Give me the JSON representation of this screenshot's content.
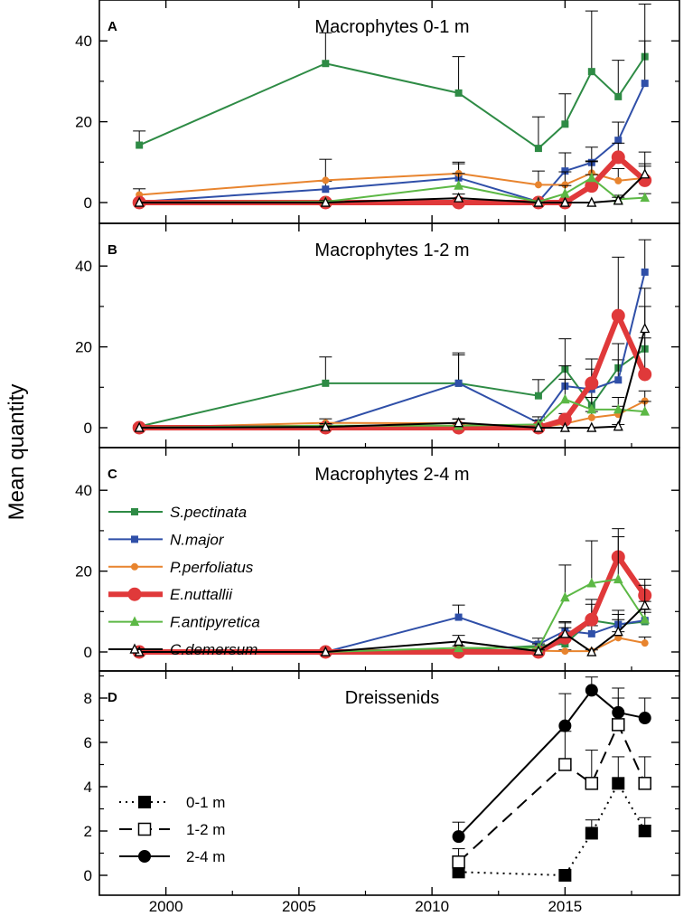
{
  "chart_data": [
    {
      "panel": "A",
      "type": "line",
      "title": "Macrophytes 0-1 m",
      "ylim": [
        0,
        50
      ],
      "yticks": [
        0,
        20,
        40
      ],
      "series": [
        {
          "name": "S.pectinata",
          "color": "#2e8b45",
          "marker": "square",
          "x": [
            1999,
            2006,
            2011,
            2014,
            2015,
            2016,
            2017,
            2018
          ],
          "values": [
            14.2,
            34.4,
            27.1,
            13.4,
            19.4,
            32.4,
            26.2,
            36.1
          ],
          "err": [
            3.5,
            7.6,
            9.0,
            7.8,
            7.5,
            15.0,
            9.0,
            13.0
          ]
        },
        {
          "name": "N.major",
          "color": "#2f4fa8",
          "marker": "square",
          "x": [
            1999,
            2006,
            2011,
            2014,
            2015,
            2016,
            2017,
            2018
          ],
          "values": [
            0.2,
            3.3,
            6.1,
            0.2,
            7.8,
            9.9,
            15.4,
            29.5
          ],
          "err": [
            0.3,
            2.0,
            3.5,
            0.3,
            4.5,
            3.8,
            4.5,
            10.5
          ]
        },
        {
          "name": "P.perfoliatus",
          "color": "#e8842e",
          "marker": "circle",
          "x": [
            1999,
            2006,
            2011,
            2014,
            2015,
            2016,
            2017,
            2018
          ],
          "values": [
            1.9,
            5.5,
            7.2,
            4.4,
            4.4,
            7.3,
            5.4,
            6.1
          ],
          "err": [
            1.5,
            5.2,
            2.8,
            3.4,
            3.2,
            3.0,
            3.0,
            3.5
          ]
        },
        {
          "name": "E.nuttallii",
          "color": "#e0393a",
          "marker": "circle",
          "x": [
            1999,
            2006,
            2011,
            2014,
            2015,
            2016,
            2017,
            2018
          ],
          "values": [
            0,
            0,
            0,
            0,
            0,
            4.1,
            11.2,
            5.5
          ],
          "err": [
            0,
            0,
            0,
            0,
            0,
            2.8,
            3.5,
            3.5
          ]
        },
        {
          "name": "F.antipyretica",
          "color": "#5cb845",
          "marker": "triangle",
          "x": [
            1999,
            2006,
            2011,
            2014,
            2015,
            2016,
            2017,
            2018
          ],
          "values": [
            0,
            0.2,
            4.2,
            0.2,
            2.2,
            6.1,
            0.8,
            1.2
          ],
          "err": [
            0,
            0.3,
            3.0,
            0.3,
            2.0,
            4.0,
            1.0,
            1.0
          ]
        },
        {
          "name": "C.demersum",
          "color": "#000000",
          "marker": "triangle-open",
          "x": [
            1999,
            2006,
            2011,
            2014,
            2015,
            2016,
            2017,
            2018
          ],
          "values": [
            0,
            0,
            1.1,
            0,
            0,
            0,
            0.5,
            7.0
          ],
          "err": [
            0,
            0,
            1.0,
            0,
            0,
            0,
            0.8,
            5.5
          ]
        }
      ]
    },
    {
      "panel": "B",
      "type": "line",
      "title": "Macrophytes 1-2 m",
      "ylim": [
        0,
        50
      ],
      "yticks": [
        0,
        20,
        40
      ],
      "series": [
        {
          "name": "S.pectinata",
          "color": "#2e8b45",
          "marker": "square",
          "x": [
            1999,
            2006,
            2011,
            2014,
            2015,
            2016,
            2017,
            2018
          ],
          "values": [
            0.3,
            11.0,
            11.0,
            7.9,
            14.5,
            5.5,
            14.8,
            19.5
          ],
          "err": [
            0.3,
            6.5,
            7.5,
            4.0,
            7.5,
            5.0,
            6.0,
            10.5
          ]
        },
        {
          "name": "N.major",
          "color": "#2f4fa8",
          "marker": "square",
          "x": [
            1999,
            2006,
            2011,
            2014,
            2015,
            2016,
            2017,
            2018
          ],
          "values": [
            0.1,
            0.5,
            11.0,
            1.2,
            10.3,
            9.5,
            11.8,
            38.5
          ],
          "err": [
            0.2,
            0.6,
            7.0,
            1.5,
            5.0,
            5.0,
            5.0,
            8.0
          ]
        },
        {
          "name": "P.perfoliatus",
          "color": "#e8842e",
          "marker": "circle",
          "x": [
            1999,
            2006,
            2011,
            2014,
            2015,
            2016,
            2017,
            2018
          ],
          "values": [
            0,
            1.2,
            1.1,
            0,
            1.0,
            2.5,
            3.3,
            6.6
          ],
          "err": [
            0,
            1.0,
            1.0,
            0,
            1.0,
            1.5,
            2.0,
            2.5
          ]
        },
        {
          "name": "E.nuttallii",
          "color": "#e0393a",
          "marker": "circle",
          "x": [
            1999,
            2006,
            2011,
            2014,
            2015,
            2016,
            2017,
            2018
          ],
          "values": [
            0,
            0,
            0,
            0,
            2.0,
            11.0,
            27.7,
            13.2
          ],
          "err": [
            0,
            0,
            0,
            0,
            1.5,
            6.0,
            14.5,
            9.0
          ]
        },
        {
          "name": "F.antipyretica",
          "color": "#5cb845",
          "marker": "triangle",
          "x": [
            1999,
            2006,
            2011,
            2014,
            2015,
            2016,
            2017,
            2018
          ],
          "values": [
            0,
            0.5,
            0.5,
            0.8,
            7.0,
            4.5,
            4.5,
            4.0
          ],
          "err": [
            0,
            0.5,
            0.5,
            1.0,
            5.0,
            3.0,
            3.0,
            2.5
          ]
        },
        {
          "name": "C.demersum",
          "color": "#000000",
          "marker": "triangle-open",
          "x": [
            1999,
            2006,
            2011,
            2014,
            2015,
            2016,
            2017,
            2018
          ],
          "values": [
            0,
            0.2,
            1.2,
            0,
            0,
            0,
            0.3,
            24.5
          ],
          "err": [
            0,
            0.2,
            1.0,
            0,
            0,
            0,
            0.5,
            10.0
          ]
        }
      ]
    },
    {
      "panel": "C",
      "type": "line",
      "title": "Macrophytes 2-4 m",
      "ylim": [
        0,
        50
      ],
      "yticks": [
        0,
        20,
        40
      ],
      "series": [
        {
          "name": "S.pectinata",
          "color": "#2e8b45",
          "marker": "square",
          "x": [
            1999,
            2006,
            2011,
            2014,
            2015,
            2016,
            2017,
            2018
          ],
          "values": [
            0,
            0,
            0.5,
            1.5,
            2.0,
            7.8,
            6.8,
            7.5
          ],
          "err": [
            0,
            0,
            0.5,
            1.0,
            2.0,
            4.0,
            3.5,
            3.0
          ]
        },
        {
          "name": "N.major",
          "color": "#2f4fa8",
          "marker": "square",
          "x": [
            1999,
            2006,
            2011,
            2014,
            2015,
            2016,
            2017,
            2018
          ],
          "values": [
            0,
            0,
            8.6,
            1.9,
            5.2,
            4.5,
            6.8,
            7.8
          ],
          "err": [
            0,
            0,
            3.0,
            1.5,
            2.0,
            2.0,
            2.5,
            2.0
          ]
        },
        {
          "name": "P.perfoliatus",
          "color": "#e8842e",
          "marker": "circle",
          "x": [
            1999,
            2006,
            2011,
            2014,
            2015,
            2016,
            2017,
            2018
          ],
          "values": [
            0,
            0,
            0.5,
            0.3,
            0.2,
            0.2,
            3.5,
            2.2
          ],
          "err": [
            0,
            0,
            0.5,
            0.3,
            0.3,
            0.3,
            1.5,
            1.5
          ]
        },
        {
          "name": "E.nuttallii",
          "color": "#e0393a",
          "marker": "circle",
          "x": [
            1999,
            2006,
            2011,
            2014,
            2015,
            2016,
            2017,
            2018
          ],
          "values": [
            0,
            0,
            0,
            0,
            3.5,
            8.0,
            23.5,
            14.0
          ],
          "err": [
            0,
            0,
            0,
            0,
            2.5,
            5.0,
            7.0,
            4.0
          ]
        },
        {
          "name": "F.antipyretica",
          "color": "#5cb845",
          "marker": "triangle",
          "x": [
            1999,
            2006,
            2011,
            2014,
            2015,
            2016,
            2017,
            2018
          ],
          "values": [
            0,
            0,
            1.0,
            1.0,
            13.5,
            17.0,
            18.0,
            8.0
          ],
          "err": [
            0,
            0,
            0.5,
            1.0,
            8.0,
            10.5,
            10.5,
            4.5
          ]
        },
        {
          "name": "C.demersum",
          "color": "#000000",
          "marker": "triangle-open",
          "x": [
            1999,
            2006,
            2011,
            2014,
            2015,
            2016,
            2017,
            2018
          ],
          "values": [
            0,
            0,
            2.6,
            0.2,
            4.5,
            0,
            5.0,
            11.5
          ],
          "err": [
            0,
            0,
            1.5,
            0.3,
            3.0,
            0,
            3.0,
            5.0
          ]
        }
      ],
      "legend": {
        "placement": "left",
        "entries": [
          "S.pectinata",
          "N.major",
          "P.perfoliatus",
          "E.nuttallii",
          "F.antipyretica",
          "C.demersum"
        ]
      }
    },
    {
      "panel": "D",
      "type": "line",
      "title": "Dreissenids",
      "ylim": [
        0,
        9.3
      ],
      "yticks": [
        0,
        2,
        4,
        6,
        8
      ],
      "series": [
        {
          "name": "0-1 m",
          "color": "#000000",
          "marker": "square",
          "style": "dotted",
          "x": [
            2011,
            2015,
            2016,
            2017,
            2018
          ],
          "values": [
            0.15,
            0.0,
            1.9,
            4.15,
            2.0
          ],
          "err": [
            0.2,
            0.0,
            0.6,
            1.2,
            0.6
          ]
        },
        {
          "name": "1-2 m",
          "color": "#000000",
          "marker": "square-open",
          "style": "dashed",
          "x": [
            2011,
            2015,
            2016,
            2017,
            2018
          ],
          "values": [
            0.6,
            5.0,
            4.15,
            6.8,
            4.15
          ],
          "err": [
            0.6,
            1.5,
            1.5,
            1.2,
            1.2
          ]
        },
        {
          "name": "2-4 m",
          "color": "#000000",
          "marker": "circle",
          "style": "solid",
          "x": [
            2011,
            2015,
            2016,
            2017,
            2018
          ],
          "values": [
            1.75,
            6.75,
            8.35,
            7.35,
            7.1
          ],
          "err": [
            0.65,
            1.45,
            0.6,
            1.1,
            0.9
          ]
        }
      ],
      "legend": {
        "placement": "bottom-left",
        "entries": [
          "0-1 m",
          "1-2 m",
          "2-4 m"
        ]
      }
    }
  ],
  "xaxis": {
    "xlim": [
      1997.5,
      2019.3
    ],
    "ticks": [
      2000,
      2005,
      2010,
      2015
    ]
  },
  "ylabel": "Mean quantity"
}
